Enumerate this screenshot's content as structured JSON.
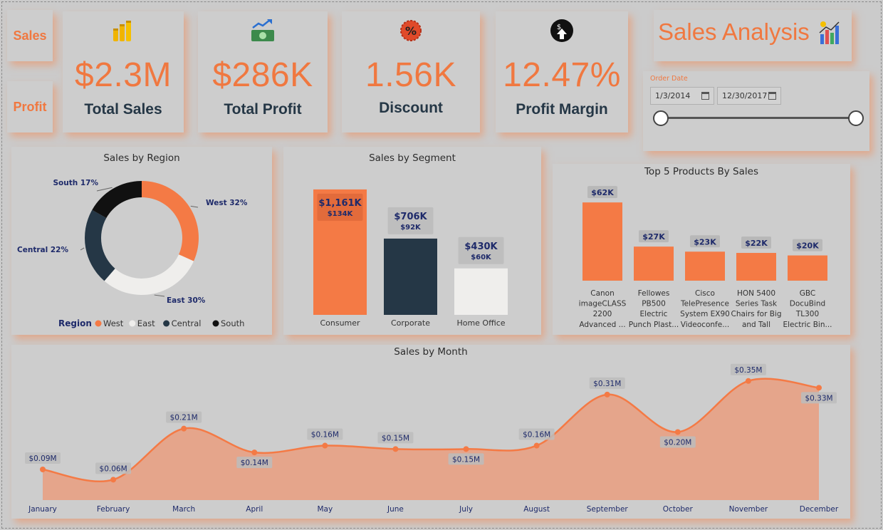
{
  "nav": {
    "sales_label": "Sales",
    "profit_label": "Profit"
  },
  "kpis": [
    {
      "value": "$2.3M",
      "label": "Total Sales",
      "icon": "coins-icon"
    },
    {
      "value": "$286K",
      "label": "Total Profit",
      "icon": "money-growth-icon"
    },
    {
      "value": "1.56K",
      "label": "Discount",
      "icon": "percent-badge-icon"
    },
    {
      "value": "12.47%",
      "label": "Profit Margin",
      "icon": "dollar-arrow-icon"
    }
  ],
  "header": {
    "title": "Sales Analysis",
    "icon": "bar-chart-icon"
  },
  "filter": {
    "label": "Order Date",
    "start": "1/3/2014",
    "end": "12/30/2017",
    "range_start_fraction": 0,
    "range_end_fraction": 1
  },
  "colors": {
    "accent": "#F47A45",
    "dark": "#253746",
    "light": "#EFEEEC",
    "black": "#111111"
  },
  "chart_data": [
    {
      "id": "region",
      "type": "pie",
      "title": "Sales by Region",
      "legend_title": "Region",
      "slices": [
        {
          "name": "West",
          "value": 32,
          "label": "West 32%"
        },
        {
          "name": "East",
          "value": 30,
          "label": "East 30%"
        },
        {
          "name": "Central",
          "value": 22,
          "label": "Central 22%"
        },
        {
          "name": "South",
          "value": 17,
          "label": "South 17%"
        }
      ]
    },
    {
      "id": "segment",
      "type": "bar",
      "title": "Sales by Segment",
      "categories": [
        "Consumer",
        "Corporate",
        "Home Office"
      ],
      "values": [
        1161,
        706,
        430
      ],
      "labels": [
        "$1,161K",
        "$706K",
        "$430K"
      ],
      "sublabels": [
        "$134K",
        "$92K",
        "$60K"
      ],
      "ylim": [
        0,
        1200
      ]
    },
    {
      "id": "products",
      "type": "bar",
      "title": "Top 5 Products By Sales",
      "categories": [
        [
          "Canon",
          "imageCLASS",
          "2200",
          "Advanced ..."
        ],
        [
          "Fellowes",
          "PB500",
          "Electric",
          "Punch Plast..."
        ],
        [
          "Cisco",
          "TelePresence",
          "System EX90",
          "Videoconfe..."
        ],
        [
          "HON 5400",
          "Series Task",
          "Chairs for Big",
          "and Tall"
        ],
        [
          "GBC",
          "DocuBind",
          "TL300",
          "Electric Bin..."
        ]
      ],
      "values": [
        62,
        27,
        23,
        22,
        20
      ],
      "labels": [
        "$62K",
        "$27K",
        "$23K",
        "$22K",
        "$20K"
      ],
      "ylim": [
        0,
        70
      ]
    },
    {
      "id": "month",
      "type": "area",
      "title": "Sales by Month",
      "x": [
        "January",
        "February",
        "March",
        "April",
        "May",
        "June",
        "July",
        "August",
        "September",
        "October",
        "November",
        "December"
      ],
      "y": [
        0.09,
        0.06,
        0.21,
        0.14,
        0.16,
        0.15,
        0.15,
        0.16,
        0.31,
        0.2,
        0.35,
        0.33
      ],
      "labels": [
        "$0.09M",
        "$0.06M",
        "$0.21M",
        "$0.14M",
        "$0.16M",
        "$0.15M",
        "$0.15M",
        "$0.16M",
        "$0.31M",
        "$0.20M",
        "$0.35M",
        "$0.33M"
      ],
      "label_pos": [
        "above",
        "above",
        "above",
        "below",
        "above",
        "above",
        "below",
        "above",
        "above",
        "below",
        "above",
        "below"
      ],
      "ylim": [
        0,
        0.36
      ]
    }
  ]
}
